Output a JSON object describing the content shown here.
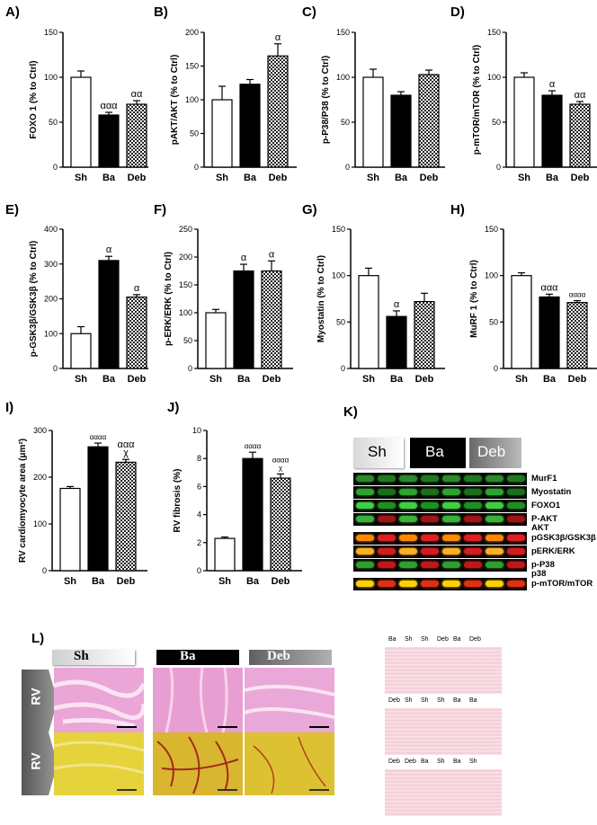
{
  "categories": [
    "Sh",
    "Ba",
    "Deb"
  ],
  "chart_data": [
    {
      "panel": "A)",
      "type": "bar",
      "ylabel": "FOXO 1 (% to Ctrl)",
      "ylim": [
        0,
        150
      ],
      "ticks": [
        0,
        50,
        100,
        150
      ],
      "values": [
        100,
        58,
        70
      ],
      "errors": [
        7,
        3,
        4
      ],
      "annotations": [
        "",
        "ααα",
        "αα"
      ]
    },
    {
      "panel": "B)",
      "type": "bar",
      "ylabel": "pAKT/AKT (% to Ctrl)",
      "ylim": [
        0,
        200
      ],
      "ticks": [
        0,
        50,
        100,
        150,
        200
      ],
      "values": [
        100,
        123,
        165
      ],
      "errors": [
        20,
        7,
        18
      ],
      "annotations": [
        "",
        "",
        "α"
      ]
    },
    {
      "panel": "C)",
      "type": "bar",
      "ylabel": "p-P38/P38 (% to Ctrl)",
      "ylim": [
        0,
        150
      ],
      "ticks": [
        0,
        50,
        100,
        150
      ],
      "values": [
        100,
        80,
        103
      ],
      "errors": [
        9,
        4,
        5
      ],
      "annotations": [
        "",
        "",
        ""
      ]
    },
    {
      "panel": "D)",
      "type": "bar",
      "ylabel": "p-mTOR/mTOR (% to Ctrl)",
      "ylim": [
        0,
        150
      ],
      "ticks": [
        0,
        50,
        100,
        150
      ],
      "values": [
        100,
        80,
        70
      ],
      "errors": [
        5,
        5,
        3
      ],
      "annotations": [
        "",
        "α",
        "αα"
      ]
    },
    {
      "panel": "E)",
      "type": "bar",
      "ylabel": "p-GSK3β/GSK3β (% to Ctrl)",
      "ylim": [
        0,
        400
      ],
      "ticks": [
        0,
        100,
        200,
        300,
        400
      ],
      "values": [
        100,
        310,
        205
      ],
      "errors": [
        20,
        12,
        7
      ],
      "annotations": [
        "",
        "α",
        "α"
      ]
    },
    {
      "panel": "F)",
      "type": "bar",
      "ylabel": "p-ERK/ERK (% to Ctrl)",
      "ylim": [
        0,
        250
      ],
      "ticks": [
        0,
        50,
        100,
        150,
        200,
        250
      ],
      "values": [
        100,
        175,
        175
      ],
      "errors": [
        6,
        12,
        18
      ],
      "annotations": [
        "",
        "α",
        "α"
      ]
    },
    {
      "panel": "G)",
      "type": "bar",
      "ylabel": "Myostatin (% to Ctrl)",
      "ylim": [
        0,
        150
      ],
      "ticks": [
        0,
        50,
        100,
        150
      ],
      "values": [
        100,
        56,
        72
      ],
      "errors": [
        8,
        6,
        9
      ],
      "annotations": [
        "",
        "α",
        ""
      ]
    },
    {
      "panel": "H)",
      "type": "bar",
      "ylabel": "MuRF 1 (% to Ctrl)",
      "ylim": [
        0,
        150
      ],
      "ticks": [
        0,
        50,
        100,
        150
      ],
      "values": [
        100,
        77,
        71
      ],
      "errors": [
        3,
        3,
        2
      ],
      "annotations": [
        "",
        "ααα",
        "αααα"
      ]
    },
    {
      "panel": "I)",
      "type": "bar",
      "ylabel": "RV cardiomyocyte area (μm²)",
      "ylim": [
        0,
        300
      ],
      "ticks": [
        0,
        100,
        200,
        300
      ],
      "values": [
        176,
        265,
        232
      ],
      "errors": [
        4,
        8,
        6
      ],
      "annotations": [
        "",
        "αααα",
        "ααα\nχ"
      ]
    },
    {
      "panel": "J)",
      "type": "bar",
      "ylabel": "RV fibrosis (%)",
      "ylim": [
        0,
        10
      ],
      "ticks": [
        0,
        2,
        4,
        6,
        8,
        10
      ],
      "values": [
        2.3,
        8.0,
        6.6
      ],
      "errors": [
        0.1,
        0.45,
        0.3
      ],
      "annotations": [
        "",
        "αααα",
        "αααα\nχ"
      ]
    }
  ],
  "blot": {
    "panel": "K)",
    "headers": [
      "Sh",
      "Ba",
      "Deb"
    ],
    "rows": [
      {
        "label": "MurF1",
        "colors": [
          "#2a8a2a",
          "#1e7a1e"
        ]
      },
      {
        "label": "Myostatin",
        "colors": [
          "#2fa32f",
          "#1a6f1a"
        ]
      },
      {
        "label": "FOXO1",
        "colors": [
          "#3fcf3f",
          "#1f8f1f"
        ]
      },
      {
        "label": "P-AKT",
        "colors": [
          "#3bb03b",
          "#a01515"
        ]
      },
      {
        "label": "AKT",
        "colors": []
      },
      {
        "label": "pGSK3β/GSK3β",
        "colors": [
          "#ff8800",
          "#e02020"
        ]
      },
      {
        "label": "pERK/ERK",
        "colors": [
          "#ffb020",
          "#d41c1c"
        ]
      },
      {
        "label": "p-P38",
        "colors": [
          "#2f9f2f",
          "#c01818"
        ]
      },
      {
        "label": "p38",
        "colors": []
      },
      {
        "label": "p-mTOR/mTOR",
        "colors": [
          "#ffd000",
          "#e03010"
        ]
      }
    ]
  },
  "histology": {
    "panel": "L)",
    "headers": [
      "Sh",
      "Ba",
      "Deb"
    ],
    "row_label": "RV"
  },
  "membranes": [
    {
      "labels": [
        "Ba",
        "Sh",
        "Sh",
        "Deb",
        "Ba",
        "Deb"
      ]
    },
    {
      "labels": [
        "Deb",
        "Sh",
        "Sh",
        "Sh",
        "Ba",
        "Ba"
      ]
    },
    {
      "labels": [
        "Deb",
        "Deb",
        "Ba",
        "Sh",
        "Ba",
        "Sh"
      ]
    }
  ],
  "colors": {
    "fill_sh": "#ffffff",
    "fill_ba": "#000000",
    "pattern_deb": "checker"
  }
}
